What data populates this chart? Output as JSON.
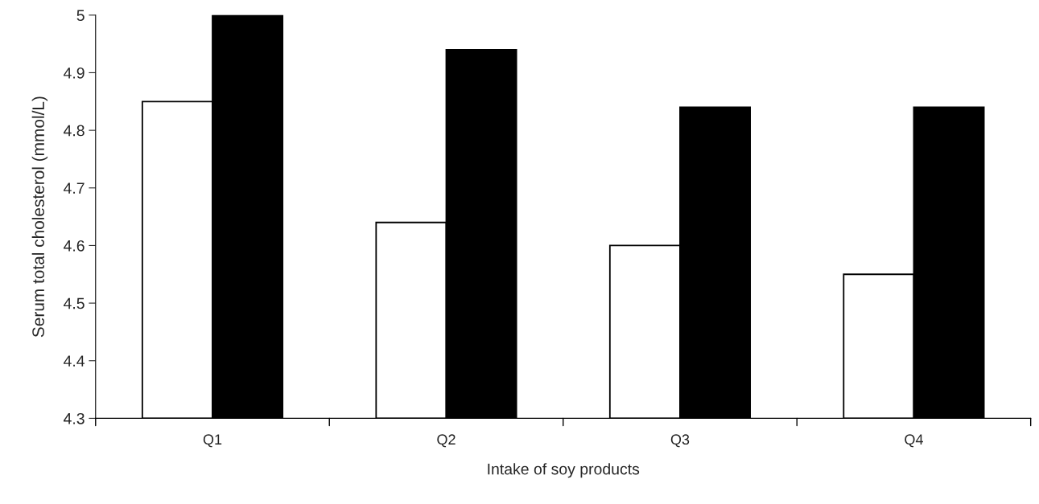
{
  "chart_data": {
    "type": "bar",
    "xlabel": "Intake of soy products",
    "ylabel": "Serum total cholesterol (mmol/L)",
    "categories": [
      "Q1",
      "Q2",
      "Q3",
      "Q4"
    ],
    "series": [
      {
        "color": "#ffffff",
        "values": [
          4.85,
          4.64,
          4.6,
          4.55
        ]
      },
      {
        "color": "#000000",
        "values": [
          5.0,
          4.94,
          4.84,
          4.84
        ]
      }
    ],
    "ylim": [
      4.3,
      5.0
    ],
    "yticks": [
      4.3,
      4.4,
      4.5,
      4.6,
      4.7,
      4.8,
      4.9,
      5
    ],
    "grid": false
  }
}
